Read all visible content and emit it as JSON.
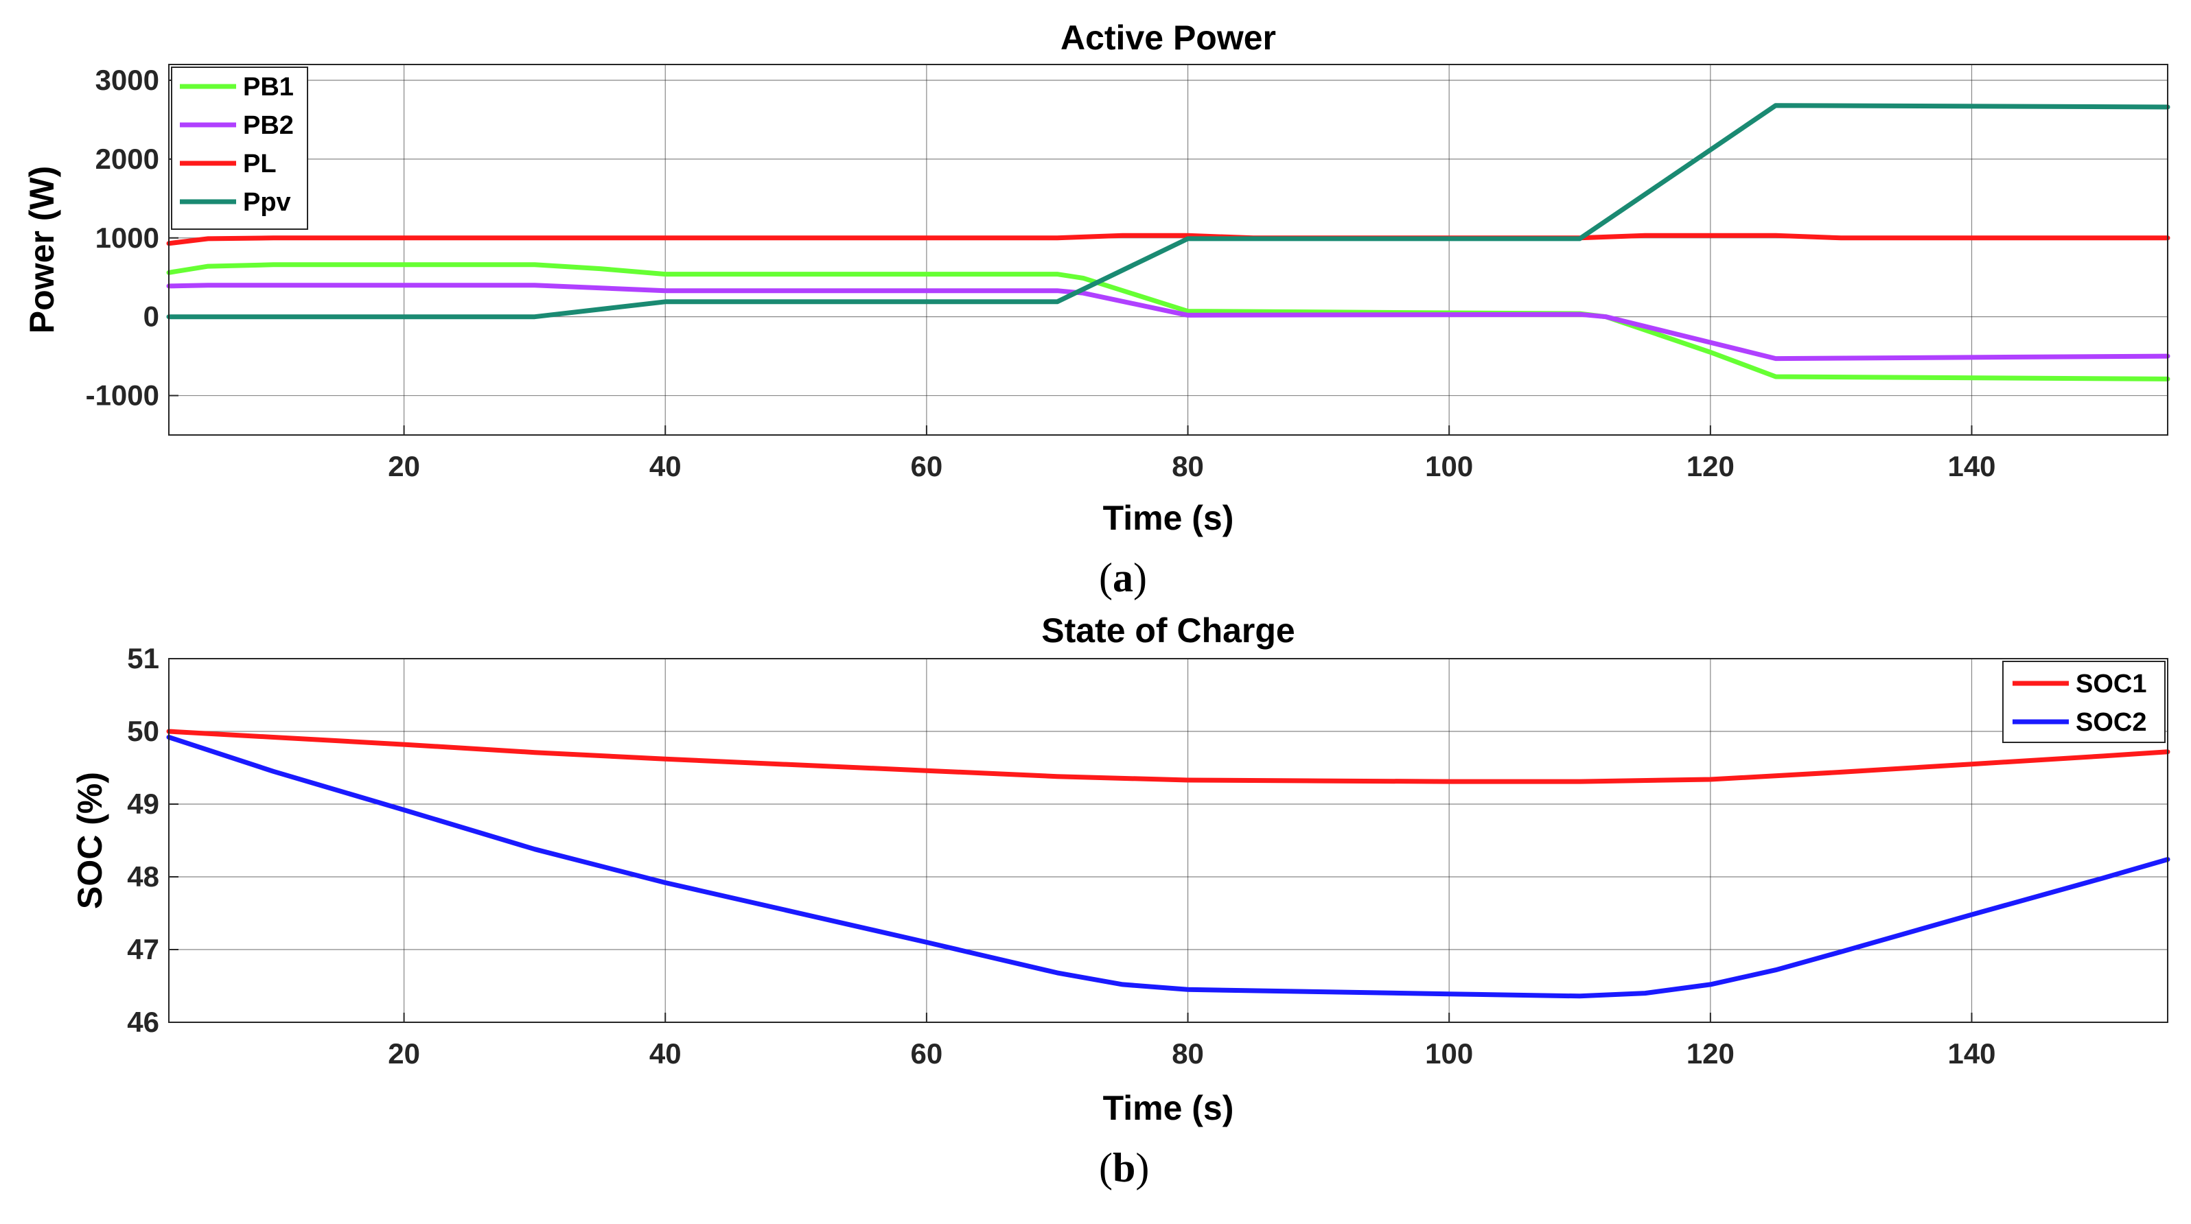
{
  "chart_data": [
    {
      "type": "line",
      "title": "Active Power",
      "xlabel": "Time (s)",
      "ylabel": "Power (W)",
      "xlim": [
        2,
        155
      ],
      "ylim": [
        -1500,
        3200
      ],
      "xticks": [
        20,
        40,
        60,
        80,
        100,
        120,
        140
      ],
      "yticks": [
        -1000,
        0,
        1000,
        2000,
        3000
      ],
      "grid": true,
      "legend_position": "top-left",
      "caption": "a",
      "series": [
        {
          "name": "PB1",
          "color": "#66ff33",
          "x": [
            2,
            5,
            10,
            30,
            35,
            40,
            70,
            72,
            80,
            110,
            112,
            120,
            125,
            155
          ],
          "y": [
            560,
            640,
            660,
            660,
            610,
            540,
            540,
            490,
            70,
            40,
            0,
            -450,
            -760,
            -790
          ]
        },
        {
          "name": "PB2",
          "color": "#b040ff",
          "x": [
            2,
            5,
            30,
            40,
            70,
            72,
            80,
            110,
            112,
            125,
            155
          ],
          "y": [
            390,
            400,
            400,
            330,
            330,
            300,
            20,
            30,
            0,
            -530,
            -500
          ]
        },
        {
          "name": "PL",
          "color": "#ff1a1a",
          "x": [
            2,
            5,
            10,
            40,
            70,
            75,
            80,
            85,
            110,
            115,
            120,
            125,
            130,
            155
          ],
          "y": [
            930,
            990,
            1000,
            1000,
            1000,
            1030,
            1030,
            1000,
            1000,
            1030,
            1030,
            1030,
            1000,
            1000
          ]
        },
        {
          "name": "Ppv",
          "color": "#1a8a72",
          "x": [
            2,
            30,
            40,
            70,
            80,
            110,
            125,
            155
          ],
          "y": [
            0,
            0,
            190,
            190,
            990,
            990,
            2680,
            2660
          ]
        }
      ]
    },
    {
      "type": "line",
      "title": "State of Charge",
      "xlabel": "Time (s)",
      "ylabel": "SOC (%)",
      "xlim": [
        2,
        155
      ],
      "ylim": [
        46,
        51
      ],
      "xticks": [
        20,
        40,
        60,
        80,
        100,
        120,
        140
      ],
      "yticks": [
        46,
        47,
        48,
        49,
        50,
        51
      ],
      "grid": true,
      "legend_position": "top-right",
      "caption": "b",
      "series": [
        {
          "name": "SOC1",
          "color": "#ff1a1a",
          "x": [
            2,
            10,
            20,
            30,
            40,
            50,
            60,
            70,
            80,
            90,
            100,
            110,
            120,
            130,
            140,
            150,
            155
          ],
          "y": [
            50.0,
            49.92,
            49.82,
            49.71,
            49.62,
            49.54,
            49.46,
            49.38,
            49.33,
            49.32,
            49.31,
            49.31,
            49.34,
            49.44,
            49.55,
            49.66,
            49.72
          ]
        },
        {
          "name": "SOC2",
          "color": "#1a1aff",
          "x": [
            2,
            10,
            20,
            30,
            40,
            50,
            60,
            70,
            75,
            80,
            90,
            100,
            110,
            115,
            120,
            125,
            130,
            140,
            150,
            155
          ],
          "y": [
            49.92,
            49.45,
            48.92,
            48.38,
            47.92,
            47.51,
            47.1,
            46.68,
            46.52,
            46.45,
            46.42,
            46.39,
            46.36,
            46.4,
            46.52,
            46.72,
            46.97,
            47.48,
            47.98,
            48.24
          ]
        }
      ]
    }
  ]
}
